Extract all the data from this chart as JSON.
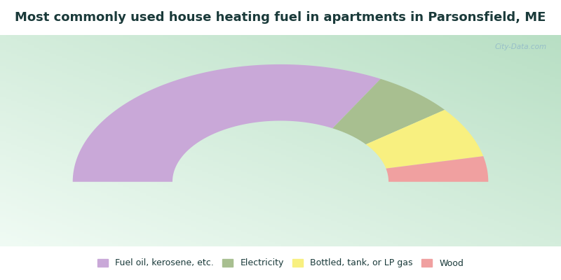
{
  "title": "Most commonly used house heating fuel in apartments in Parsonsfield, ME",
  "title_color": "#1a3a3a",
  "title_fontsize": 13,
  "segments": [
    {
      "label": "Fuel oil, kerosene, etc.",
      "value": 66,
      "color": "#c9a8d8"
    },
    {
      "label": "Electricity",
      "value": 13,
      "color": "#a8bf90"
    },
    {
      "label": "Bottled, tank, or LP gas",
      "value": 14,
      "color": "#f8f080"
    },
    {
      "label": "Wood",
      "value": 7,
      "color": "#f0a0a0"
    }
  ],
  "outer_r": 1.0,
  "inner_r": 0.52,
  "header_bg": "#00e5ff",
  "footer_bg": "#00e5ff",
  "watermark": "City-Data.com",
  "bg_colors": [
    "#cce8d4",
    "#e8f5ec",
    "#f5fdf8"
  ],
  "legend_fontsize": 9,
  "legend_label_color": "#1a3a3a"
}
